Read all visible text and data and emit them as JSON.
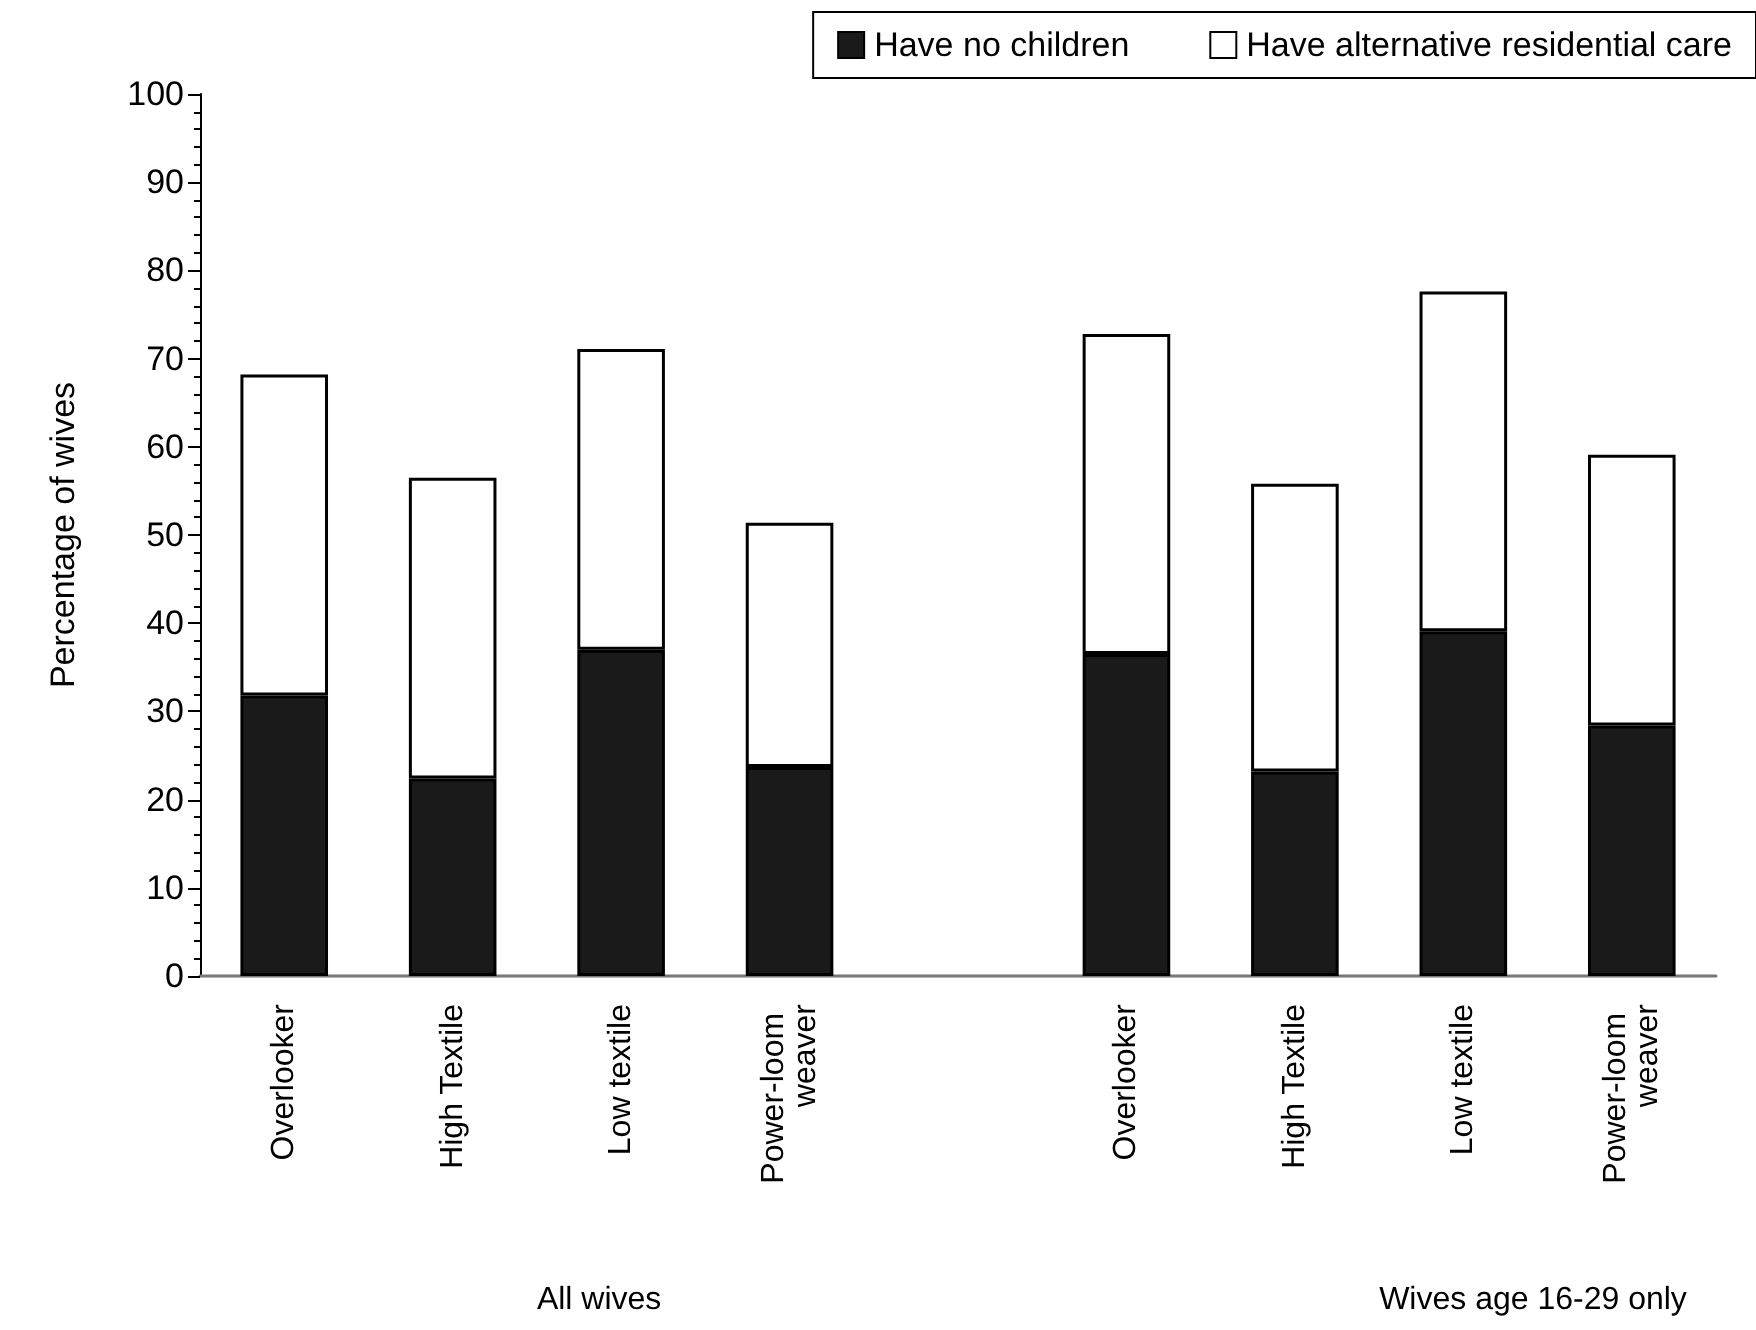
{
  "chart_data": {
    "type": "bar",
    "stacked": true,
    "ylabel": "Percentage of wives",
    "categories": [
      "Overlooker",
      "High Textile",
      "Low textile",
      "Power-loom weaver",
      null,
      "Overlooker",
      "High Textile",
      "Low textile",
      "Power-loom weaver"
    ],
    "series": [
      {
        "name": "Have no children",
        "color": "#1a1a1a",
        "values": [
          31.8,
          22.4,
          37.0,
          23.7,
          null,
          36.5,
          23.2,
          39.1,
          28.4
        ]
      },
      {
        "name": "Have alternative residential care",
        "color": "#ffffff",
        "values": [
          36.4,
          34.1,
          34.1,
          27.7,
          null,
          36.3,
          32.6,
          38.5,
          30.7
        ]
      }
    ],
    "ylim": [
      0,
      100
    ],
    "yticks": [
      0,
      10,
      20,
      30,
      40,
      50,
      60,
      70,
      80,
      90,
      100
    ],
    "grid": false,
    "legend": "top right",
    "annotations": [
      "All wives",
      "Wives age 16-29 only"
    ]
  }
}
